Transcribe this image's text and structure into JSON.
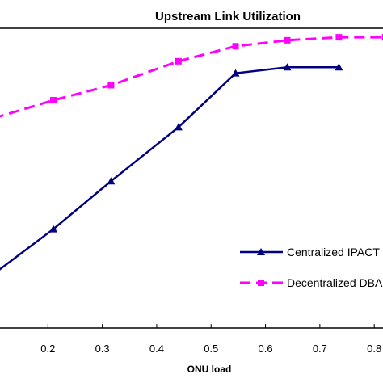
{
  "chart_data": {
    "type": "line",
    "title": "Upstream Link Utilization",
    "xlabel": "ONU load",
    "ylabel": "",
    "x_ticks": [
      "0.2",
      "0.3",
      "0.4",
      "0.5",
      "0.6",
      "0.7",
      "0.8"
    ],
    "xlim": [
      0.1,
      0.825
    ],
    "ylim": [
      0,
      1
    ],
    "grid": false,
    "legend_position": "bottom-right",
    "series": [
      {
        "name": "Centralized IPACT",
        "color": "#000080",
        "marker": "triangle",
        "line_style": "solid",
        "x": [
          0.1,
          0.21,
          0.316,
          0.44,
          0.545,
          0.64,
          0.735
        ],
        "y": [
          0.18,
          0.33,
          0.49,
          0.67,
          0.85,
          0.87,
          0.87
        ]
      },
      {
        "name": "Decentralized DBA",
        "color": "#ff00ff",
        "marker": "square",
        "line_style": "dashed",
        "x": [
          0.1,
          0.21,
          0.316,
          0.44,
          0.545,
          0.64,
          0.735,
          0.82
        ],
        "y": [
          0.7,
          0.76,
          0.81,
          0.89,
          0.94,
          0.96,
          0.97,
          0.97
        ]
      }
    ]
  }
}
